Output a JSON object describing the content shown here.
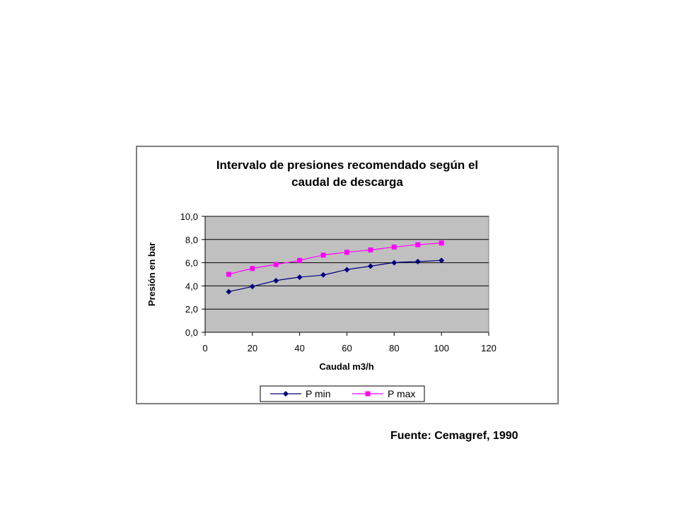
{
  "chart_data": {
    "type": "line",
    "title_lines": [
      "Intervalo de presiones recomendado según el",
      "caudal de descarga"
    ],
    "xlabel": "Caudal m3/h",
    "ylabel": "Presión en bar",
    "x": [
      10,
      20,
      30,
      40,
      50,
      60,
      70,
      80,
      90,
      100
    ],
    "series": [
      {
        "name": "P min",
        "color": "#000080",
        "marker": "diamond",
        "values": [
          3.5,
          3.95,
          4.45,
          4.75,
          4.95,
          5.4,
          5.7,
          6.0,
          6.1,
          6.2
        ]
      },
      {
        "name": "P max",
        "color": "#ff00ff",
        "marker": "square",
        "values": [
          5.0,
          5.5,
          5.85,
          6.2,
          6.65,
          6.9,
          7.1,
          7.35,
          7.55,
          7.7
        ]
      }
    ],
    "xlim": [
      0,
      120
    ],
    "ylim": [
      0,
      10
    ],
    "xticks": [
      0,
      20,
      40,
      60,
      80,
      100,
      120
    ],
    "xtick_labels": [
      "0",
      "20",
      "40",
      "60",
      "80",
      "100",
      "120"
    ],
    "yticks": [
      0,
      2,
      4,
      6,
      8,
      10
    ],
    "ytick_labels": [
      "0,0",
      "2,0",
      "4,0",
      "6,0",
      "8,0",
      "10,0"
    ],
    "grid": "horizontal",
    "plot_background": "#c0c0c0",
    "legend_position": "bottom"
  },
  "footnote": "Fuente: Cemagref, 1990"
}
